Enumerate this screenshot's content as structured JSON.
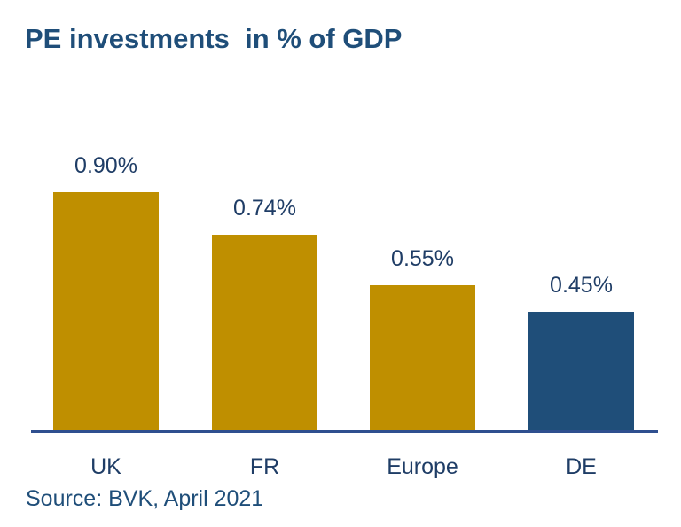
{
  "chart_data": {
    "type": "bar",
    "title": "PE investments  in % of GDP",
    "categories": [
      "UK",
      "FR",
      "Europe",
      "DE"
    ],
    "values": [
      0.9,
      0.74,
      0.55,
      0.45
    ],
    "value_labels": [
      "0.90%",
      "0.74%",
      "0.55%",
      "0.45%"
    ],
    "bar_colors": [
      "#bf8f00",
      "#bf8f00",
      "#bf8f00",
      "#1f4e79"
    ],
    "axis_color": "#2f4f8f",
    "ylim": [
      0,
      1
    ],
    "grid": false,
    "legend": "none",
    "source": "Source: BVK, April 2021"
  }
}
